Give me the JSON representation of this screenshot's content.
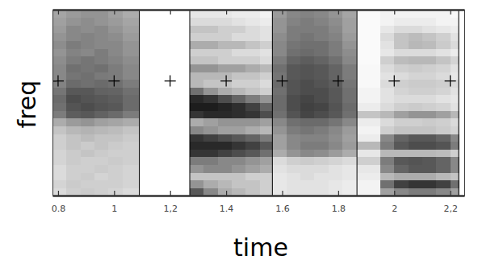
{
  "chart_data": {
    "type": "heatmap",
    "x_label": "time",
    "y_label": "freq",
    "xlim": [
      0.78,
      2.25
    ],
    "xticks": [
      0.8,
      1,
      {
        "value": 1.2,
        "label": "1,2"
      },
      1.4,
      1.6,
      1.8,
      2,
      {
        "value": 2.2,
        "label": "2,2"
      }
    ],
    "ylim": [
      0,
      6
    ],
    "yticks": [
      3.7
    ],
    "tick_labels": "x",
    "grid": true,
    "zlim": [
      0,
      1
    ],
    "boundaries": [
      1.09,
      1.27,
      1.565,
      1.867,
      2.23
    ],
    "t_bins": [
      0.78,
      0.83,
      0.88,
      0.93,
      0.98,
      1.03,
      1.09,
      1.27,
      1.32,
      1.37,
      1.42,
      1.47,
      1.52,
      1.565,
      1.615,
      1.665,
      1.715,
      1.765,
      1.815,
      1.867,
      1.95,
      2.0,
      2.05,
      2.1,
      2.15,
      2.2,
      2.23
    ],
    "f_bins": [
      0,
      0.25,
      0.5,
      0.75,
      1,
      1.25,
      1.5,
      1.75,
      2,
      2.25,
      2.5,
      2.75,
      3,
      3.25,
      3.5,
      3.75,
      4,
      4.25,
      4.5,
      4.75,
      5,
      5.25,
      5.5,
      5.75,
      6
    ],
    "intensity": [
      [
        0.15,
        0.18,
        0.15,
        0.15,
        0.18,
        0.18,
        0.2,
        0.2,
        0.25,
        0.35,
        0.55,
        0.6,
        0.62,
        0.58,
        0.52,
        0.5,
        0.5,
        0.48,
        0.45,
        0.48,
        0.45,
        0.42,
        0.4,
        0.38
      ],
      [
        0.2,
        0.22,
        0.2,
        0.2,
        0.22,
        0.22,
        0.25,
        0.25,
        0.3,
        0.42,
        0.68,
        0.72,
        0.75,
        0.7,
        0.62,
        0.58,
        0.6,
        0.55,
        0.52,
        0.55,
        0.5,
        0.5,
        0.45,
        0.42
      ],
      [
        0.22,
        0.2,
        0.22,
        0.2,
        0.2,
        0.25,
        0.22,
        0.28,
        0.32,
        0.45,
        0.7,
        0.75,
        0.72,
        0.7,
        0.6,
        0.6,
        0.58,
        0.58,
        0.5,
        0.52,
        0.52,
        0.48,
        0.48,
        0.45
      ],
      [
        0.2,
        0.2,
        0.18,
        0.22,
        0.2,
        0.22,
        0.25,
        0.25,
        0.3,
        0.4,
        0.66,
        0.72,
        0.7,
        0.66,
        0.62,
        0.56,
        0.6,
        0.55,
        0.55,
        0.5,
        0.5,
        0.5,
        0.45,
        0.45
      ],
      [
        0.18,
        0.2,
        0.2,
        0.2,
        0.22,
        0.2,
        0.22,
        0.25,
        0.28,
        0.38,
        0.62,
        0.7,
        0.68,
        0.65,
        0.6,
        0.55,
        0.55,
        0.52,
        0.5,
        0.5,
        0.48,
        0.45,
        0.42,
        0.4
      ],
      [
        0.15,
        0.18,
        0.18,
        0.18,
        0.2,
        0.2,
        0.2,
        0.22,
        0.25,
        0.35,
        0.55,
        0.62,
        0.62,
        0.6,
        0.55,
        0.5,
        0.5,
        0.48,
        0.45,
        0.45,
        0.42,
        0.4,
        0.38,
        0.35
      ],
      [
        0,
        0,
        0,
        0,
        0,
        0,
        0,
        0,
        0,
        0,
        0,
        0,
        0,
        0,
        0,
        0,
        0,
        0,
        0,
        0,
        0,
        0,
        0,
        0
      ],
      [
        0.7,
        0.45,
        0.25,
        0.45,
        0.55,
        0.85,
        0.9,
        0.85,
        0.5,
        0.35,
        0.85,
        0.95,
        0.9,
        0.6,
        0.3,
        0.3,
        0.45,
        0.25,
        0.2,
        0.35,
        0.2,
        0.25,
        0.15,
        0.1
      ],
      [
        0.5,
        0.35,
        0.25,
        0.5,
        0.55,
        0.85,
        0.9,
        0.8,
        0.45,
        0.4,
        0.9,
        0.95,
        0.85,
        0.45,
        0.25,
        0.3,
        0.45,
        0.25,
        0.2,
        0.35,
        0.2,
        0.25,
        0.15,
        0.1
      ],
      [
        0.35,
        0.3,
        0.25,
        0.5,
        0.5,
        0.8,
        0.9,
        0.75,
        0.4,
        0.45,
        0.9,
        0.92,
        0.75,
        0.35,
        0.25,
        0.3,
        0.4,
        0.2,
        0.2,
        0.3,
        0.2,
        0.2,
        0.15,
        0.1
      ],
      [
        0.3,
        0.25,
        0.25,
        0.45,
        0.5,
        0.75,
        0.85,
        0.7,
        0.4,
        0.45,
        0.88,
        0.88,
        0.65,
        0.3,
        0.2,
        0.25,
        0.4,
        0.2,
        0.15,
        0.3,
        0.15,
        0.2,
        0.12,
        0.08
      ],
      [
        0.25,
        0.25,
        0.2,
        0.4,
        0.45,
        0.7,
        0.8,
        0.65,
        0.35,
        0.45,
        0.85,
        0.8,
        0.55,
        0.25,
        0.2,
        0.25,
        0.35,
        0.2,
        0.15,
        0.25,
        0.15,
        0.15,
        0.1,
        0.08
      ],
      [
        0.2,
        0.2,
        0.2,
        0.35,
        0.4,
        0.6,
        0.7,
        0.55,
        0.3,
        0.4,
        0.75,
        0.65,
        0.45,
        0.2,
        0.15,
        0.2,
        0.3,
        0.15,
        0.12,
        0.2,
        0.12,
        0.12,
        0.08,
        0.05
      ],
      [
        0.1,
        0.1,
        0.1,
        0.12,
        0.15,
        0.35,
        0.4,
        0.4,
        0.45,
        0.5,
        0.6,
        0.62,
        0.62,
        0.6,
        0.62,
        0.58,
        0.6,
        0.55,
        0.5,
        0.5,
        0.48,
        0.45,
        0.45,
        0.42
      ],
      [
        0.12,
        0.12,
        0.12,
        0.15,
        0.2,
        0.45,
        0.5,
        0.5,
        0.55,
        0.6,
        0.72,
        0.75,
        0.75,
        0.72,
        0.72,
        0.7,
        0.7,
        0.65,
        0.6,
        0.58,
        0.55,
        0.55,
        0.52,
        0.5
      ],
      [
        0.12,
        0.12,
        0.15,
        0.15,
        0.22,
        0.5,
        0.55,
        0.52,
        0.58,
        0.62,
        0.78,
        0.8,
        0.78,
        0.75,
        0.75,
        0.72,
        0.72,
        0.68,
        0.62,
        0.6,
        0.58,
        0.55,
        0.55,
        0.52
      ],
      [
        0.12,
        0.12,
        0.12,
        0.15,
        0.2,
        0.48,
        0.55,
        0.52,
        0.55,
        0.62,
        0.75,
        0.78,
        0.75,
        0.75,
        0.72,
        0.7,
        0.7,
        0.65,
        0.6,
        0.6,
        0.55,
        0.55,
        0.52,
        0.5
      ],
      [
        0.1,
        0.1,
        0.12,
        0.12,
        0.18,
        0.42,
        0.5,
        0.48,
        0.5,
        0.58,
        0.7,
        0.72,
        0.7,
        0.7,
        0.68,
        0.65,
        0.65,
        0.6,
        0.55,
        0.55,
        0.52,
        0.5,
        0.48,
        0.45
      ],
      [
        0.08,
        0.08,
        0.1,
        0.1,
        0.15,
        0.35,
        0.42,
        0.4,
        0.42,
        0.5,
        0.6,
        0.62,
        0.6,
        0.6,
        0.58,
        0.55,
        0.55,
        0.5,
        0.48,
        0.45,
        0.42,
        0.4,
        0.4,
        0.38
      ],
      [
        0.05,
        0.05,
        0.08,
        0.1,
        0.2,
        0.1,
        0.3,
        0.08,
        0.05,
        0.08,
        0.25,
        0.08,
        0.05,
        0.05,
        0.03,
        0.03,
        0.03,
        0.02,
        0.02,
        0.02,
        0.02,
        0.02,
        0.02,
        0.02
      ],
      [
        0.4,
        0.6,
        0.3,
        0.5,
        0.55,
        0.3,
        0.55,
        0.5,
        0.2,
        0.15,
        0.3,
        0.15,
        0.12,
        0.12,
        0.15,
        0.12,
        0.15,
        0.2,
        0.1,
        0.12,
        0.15,
        0.1,
        0.05,
        0.05
      ],
      [
        0.5,
        0.8,
        0.35,
        0.65,
        0.7,
        0.3,
        0.7,
        0.65,
        0.25,
        0.2,
        0.4,
        0.2,
        0.15,
        0.18,
        0.2,
        0.15,
        0.2,
        0.28,
        0.15,
        0.25,
        0.25,
        0.15,
        0.08,
        0.05
      ],
      [
        0.55,
        0.85,
        0.35,
        0.7,
        0.72,
        0.3,
        0.75,
        0.7,
        0.25,
        0.2,
        0.45,
        0.22,
        0.15,
        0.2,
        0.22,
        0.18,
        0.22,
        0.3,
        0.15,
        0.3,
        0.28,
        0.15,
        0.08,
        0.05
      ],
      [
        0.55,
        0.85,
        0.35,
        0.7,
        0.7,
        0.3,
        0.75,
        0.7,
        0.25,
        0.22,
        0.45,
        0.2,
        0.15,
        0.2,
        0.22,
        0.18,
        0.2,
        0.3,
        0.15,
        0.28,
        0.25,
        0.12,
        0.08,
        0.05
      ],
      [
        0.5,
        0.8,
        0.3,
        0.65,
        0.65,
        0.28,
        0.72,
        0.65,
        0.22,
        0.2,
        0.4,
        0.18,
        0.12,
        0.18,
        0.2,
        0.15,
        0.18,
        0.25,
        0.12,
        0.22,
        0.2,
        0.1,
        0.05,
        0.05
      ],
      [
        0.4,
        0.6,
        0.25,
        0.5,
        0.5,
        0.2,
        0.55,
        0.5,
        0.18,
        0.15,
        0.3,
        0.12,
        0.1,
        0.12,
        0.15,
        0.1,
        0.12,
        0.18,
        0.08,
        0.15,
        0.12,
        0.08,
        0.05,
        0.03
      ]
    ]
  }
}
